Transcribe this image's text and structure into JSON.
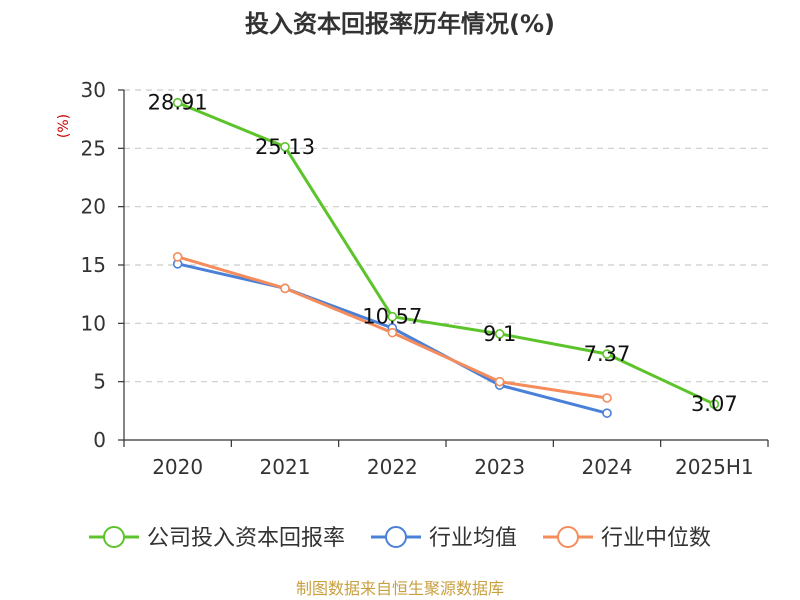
{
  "chart_data": {
    "type": "line",
    "title": "投入资本回报率历年情况(%)",
    "ylabel": "(%)",
    "ylim": [
      0,
      30
    ],
    "yticks": [
      0,
      5,
      10,
      15,
      20,
      25,
      30
    ],
    "categories": [
      "2020",
      "2021",
      "2022",
      "2023",
      "2024",
      "2025H1"
    ],
    "grid": true,
    "legend_position": "bottom",
    "series": [
      {
        "name": "公司投入资本回报率",
        "color": "#5cc42a",
        "values": [
          28.91,
          25.13,
          10.57,
          9.1,
          7.37,
          3.07
        ],
        "labels": [
          "28.91",
          "25.13",
          "10.57",
          "9.1",
          "7.37",
          "3.07"
        ]
      },
      {
        "name": "行业均值",
        "color": "#4a80d8",
        "values": [
          15.1,
          13.0,
          9.6,
          4.7,
          2.3,
          null
        ]
      },
      {
        "name": "行业中位数",
        "color": "#f58c5c",
        "values": [
          15.7,
          13.0,
          9.2,
          5.0,
          3.6,
          null
        ]
      }
    ]
  },
  "source": "制图数据来自恒生聚源数据库",
  "colors": {
    "axis": "#333333",
    "grid": "#cccccc",
    "unit": "#cc0000",
    "source": "#c8a040"
  }
}
